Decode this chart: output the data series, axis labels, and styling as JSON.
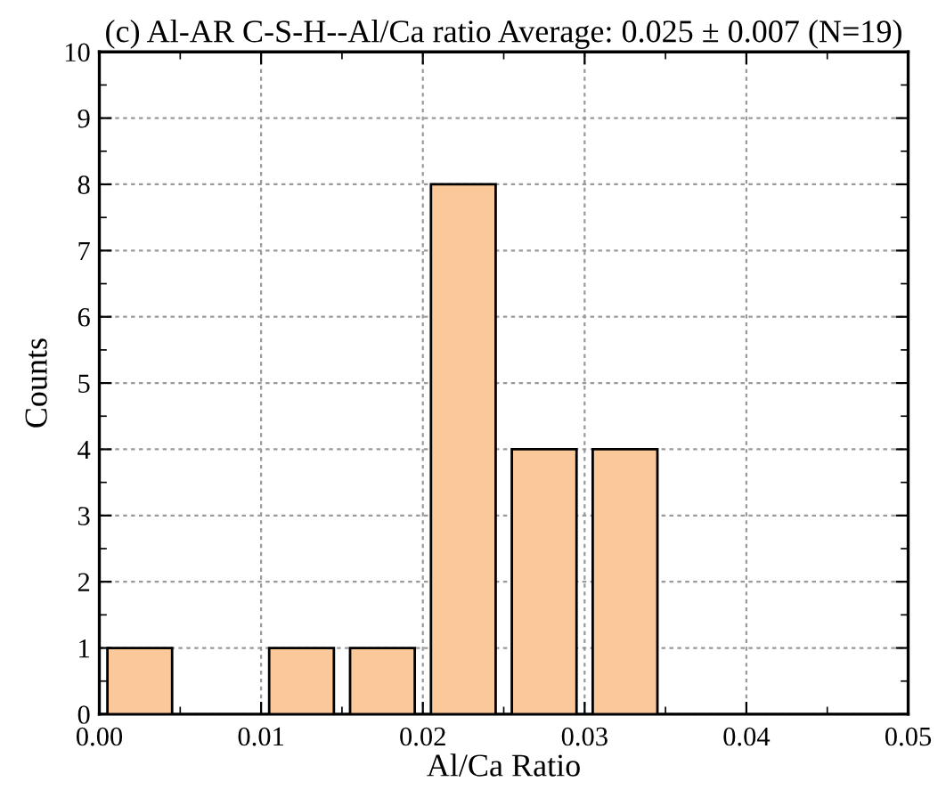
{
  "chart_data": {
    "type": "histogram",
    "title": "(c) Al-AR C-S-H--Al/Ca ratio Average: 0.025 ± 0.007 (N=19)",
    "xlabel": "Al/Ca Ratio",
    "ylabel": "Counts",
    "bins": [
      0,
      0.005,
      0.01,
      0.015,
      0.02,
      0.025,
      0.03,
      0.035
    ],
    "values": [
      1,
      0,
      1,
      1,
      8,
      4,
      4
    ],
    "color": "#fbc899",
    "xlim": [
      0,
      0.05
    ],
    "xticks": [
      {
        "value": 0,
        "label": "0.00"
      },
      {
        "value": 0.01,
        "label": "0.01"
      },
      {
        "value": 0.02,
        "label": "0.02"
      },
      {
        "value": 0.03,
        "label": "0.03"
      },
      {
        "value": 0.04,
        "label": "0.04"
      },
      {
        "value": 0.05,
        "label": "0.05"
      }
    ],
    "ylim": [
      0,
      10
    ],
    "yticks": [
      0,
      1,
      2,
      3,
      4,
      5,
      6,
      7,
      8,
      9,
      10
    ],
    "grid": true,
    "legend": false
  }
}
